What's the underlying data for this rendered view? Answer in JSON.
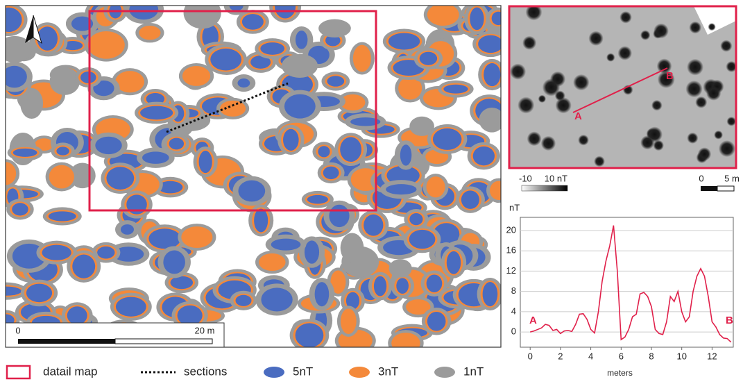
{
  "map": {
    "scale_bar": {
      "start": "0",
      "end": "20 m"
    },
    "detail": {
      "point_a": "A",
      "point_b": "B",
      "colorbar_min": "-10",
      "colorbar_max": "10 nT",
      "scale_start": "0",
      "scale_end": "5 m"
    },
    "legend": {
      "detail_map": "datail map",
      "sections": "sections",
      "levels": [
        {
          "label": "5nT",
          "color": "#4a6cc0"
        },
        {
          "label": "3nT",
          "color": "#f4893a"
        },
        {
          "label": "1nT",
          "color": "#9b9b9b"
        }
      ]
    }
  },
  "chart_data": {
    "type": "line",
    "y_label": "nT",
    "x_label": "meters",
    "annotations": [
      "A",
      "B"
    ],
    "color": "#e0204a",
    "x": [
      0,
      0.25,
      0.5,
      0.75,
      1,
      1.25,
      1.5,
      1.75,
      2,
      2.25,
      2.5,
      2.75,
      3,
      3.25,
      3.5,
      3.75,
      4,
      4.25,
      4.5,
      4.75,
      5,
      5.25,
      5.5,
      5.75,
      6,
      6.25,
      6.5,
      6.75,
      7,
      7.25,
      7.5,
      7.75,
      8,
      8.25,
      8.5,
      8.75,
      9,
      9.25,
      9.5,
      9.75,
      10,
      10.25,
      10.5,
      10.75,
      11,
      11.25,
      11.5,
      11.75,
      12,
      12.25,
      12.5,
      12.75,
      13,
      13.25
    ],
    "values": [
      0,
      0.2,
      0.5,
      0.8,
      1.5,
      1.3,
      0.3,
      0.5,
      -0.3,
      0.2,
      0.3,
      0.1,
      1.5,
      3.5,
      3.6,
      2.5,
      0.5,
      -0.2,
      4,
      10,
      14,
      17,
      21,
      12,
      -1.5,
      -1,
      0.5,
      3,
      3.5,
      7.5,
      7.8,
      7,
      5,
      0.5,
      -0.3,
      -0.5,
      2,
      7,
      6,
      8,
      4,
      2,
      3,
      8,
      11,
      12.5,
      11,
      7,
      2,
      1,
      -0.5,
      -1.2,
      -1.3,
      -2
    ],
    "xlim": [
      -0.65,
      13.4
    ],
    "ylim": [
      -3,
      22.6
    ],
    "xticks": [
      0,
      2,
      4,
      6,
      8,
      10,
      12
    ],
    "yticks": [
      0,
      4,
      8,
      12,
      16,
      20
    ],
    "grid": true
  }
}
